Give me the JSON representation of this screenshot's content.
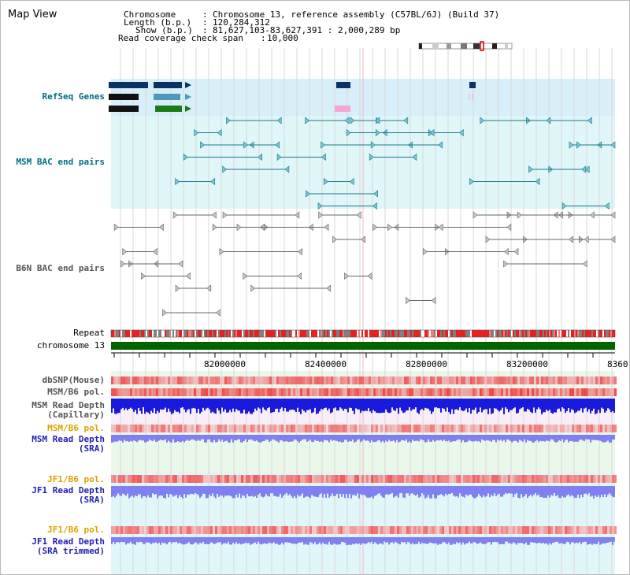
{
  "header": {
    "title": "Map View",
    "chromosome_label": "Chromosome",
    "chromosome_value": "Chromosome 13, reference assembly (C57BL/6J) (Build 37)",
    "length_label": "Length (b.p.)",
    "length_value": "120,284,312",
    "show_label": "Show (b.p.)",
    "show_value": "81,627,103-83,627,391 : 2,000,289 bp",
    "coverage_label": "Read coverage check span",
    "coverage_value": "10,000"
  },
  "tracks": {
    "refseq": "RefSeq Genes",
    "msm_bac": "MSM BAC end pairs",
    "b6n_bac": "B6N BAC end pairs",
    "repeat": "Repeat",
    "chromosome": "chromosome 13",
    "dbsnp": "dbSNP(Mouse)",
    "msm_b6_pol_1": "MSM/B6 pol.",
    "msm_read_depth_cap_1": "MSM Read Depth",
    "msm_read_depth_cap_2": "(Capillary)",
    "msm_b6_pol_2": "MSM/B6 pol.",
    "msm_read_depth_sra_1": "MSM Read Depth",
    "msm_read_depth_sra_2": "(SRA)",
    "jf1_b6_pol_1": "JF1/B6 pol.",
    "jf1_read_depth_sra_1": "JF1 Read Depth",
    "jf1_read_depth_sra_2": "(SRA)",
    "jf1_b6_pol_2": "JF1/B6 pol.",
    "jf1_read_depth_trim_1": "JF1 Read Depth",
    "jf1_read_depth_trim_2": "(SRA trimmed)"
  },
  "axis": {
    "ticks": [
      "82000000",
      "82400000",
      "82800000",
      "83200000",
      "8360"
    ]
  },
  "colors": {
    "teal_label": "#006e82",
    "blue_label": "#1f1fb4",
    "orange_label": "#e0a000",
    "refseq_bg": "#d8eef8",
    "bac_bg": "#e0f6f8",
    "chromosome_bar": "#006400",
    "depth_blue": "#1a1adc",
    "depth_light_blue": "#8080f0",
    "pol_red": "#f04040"
  }
}
